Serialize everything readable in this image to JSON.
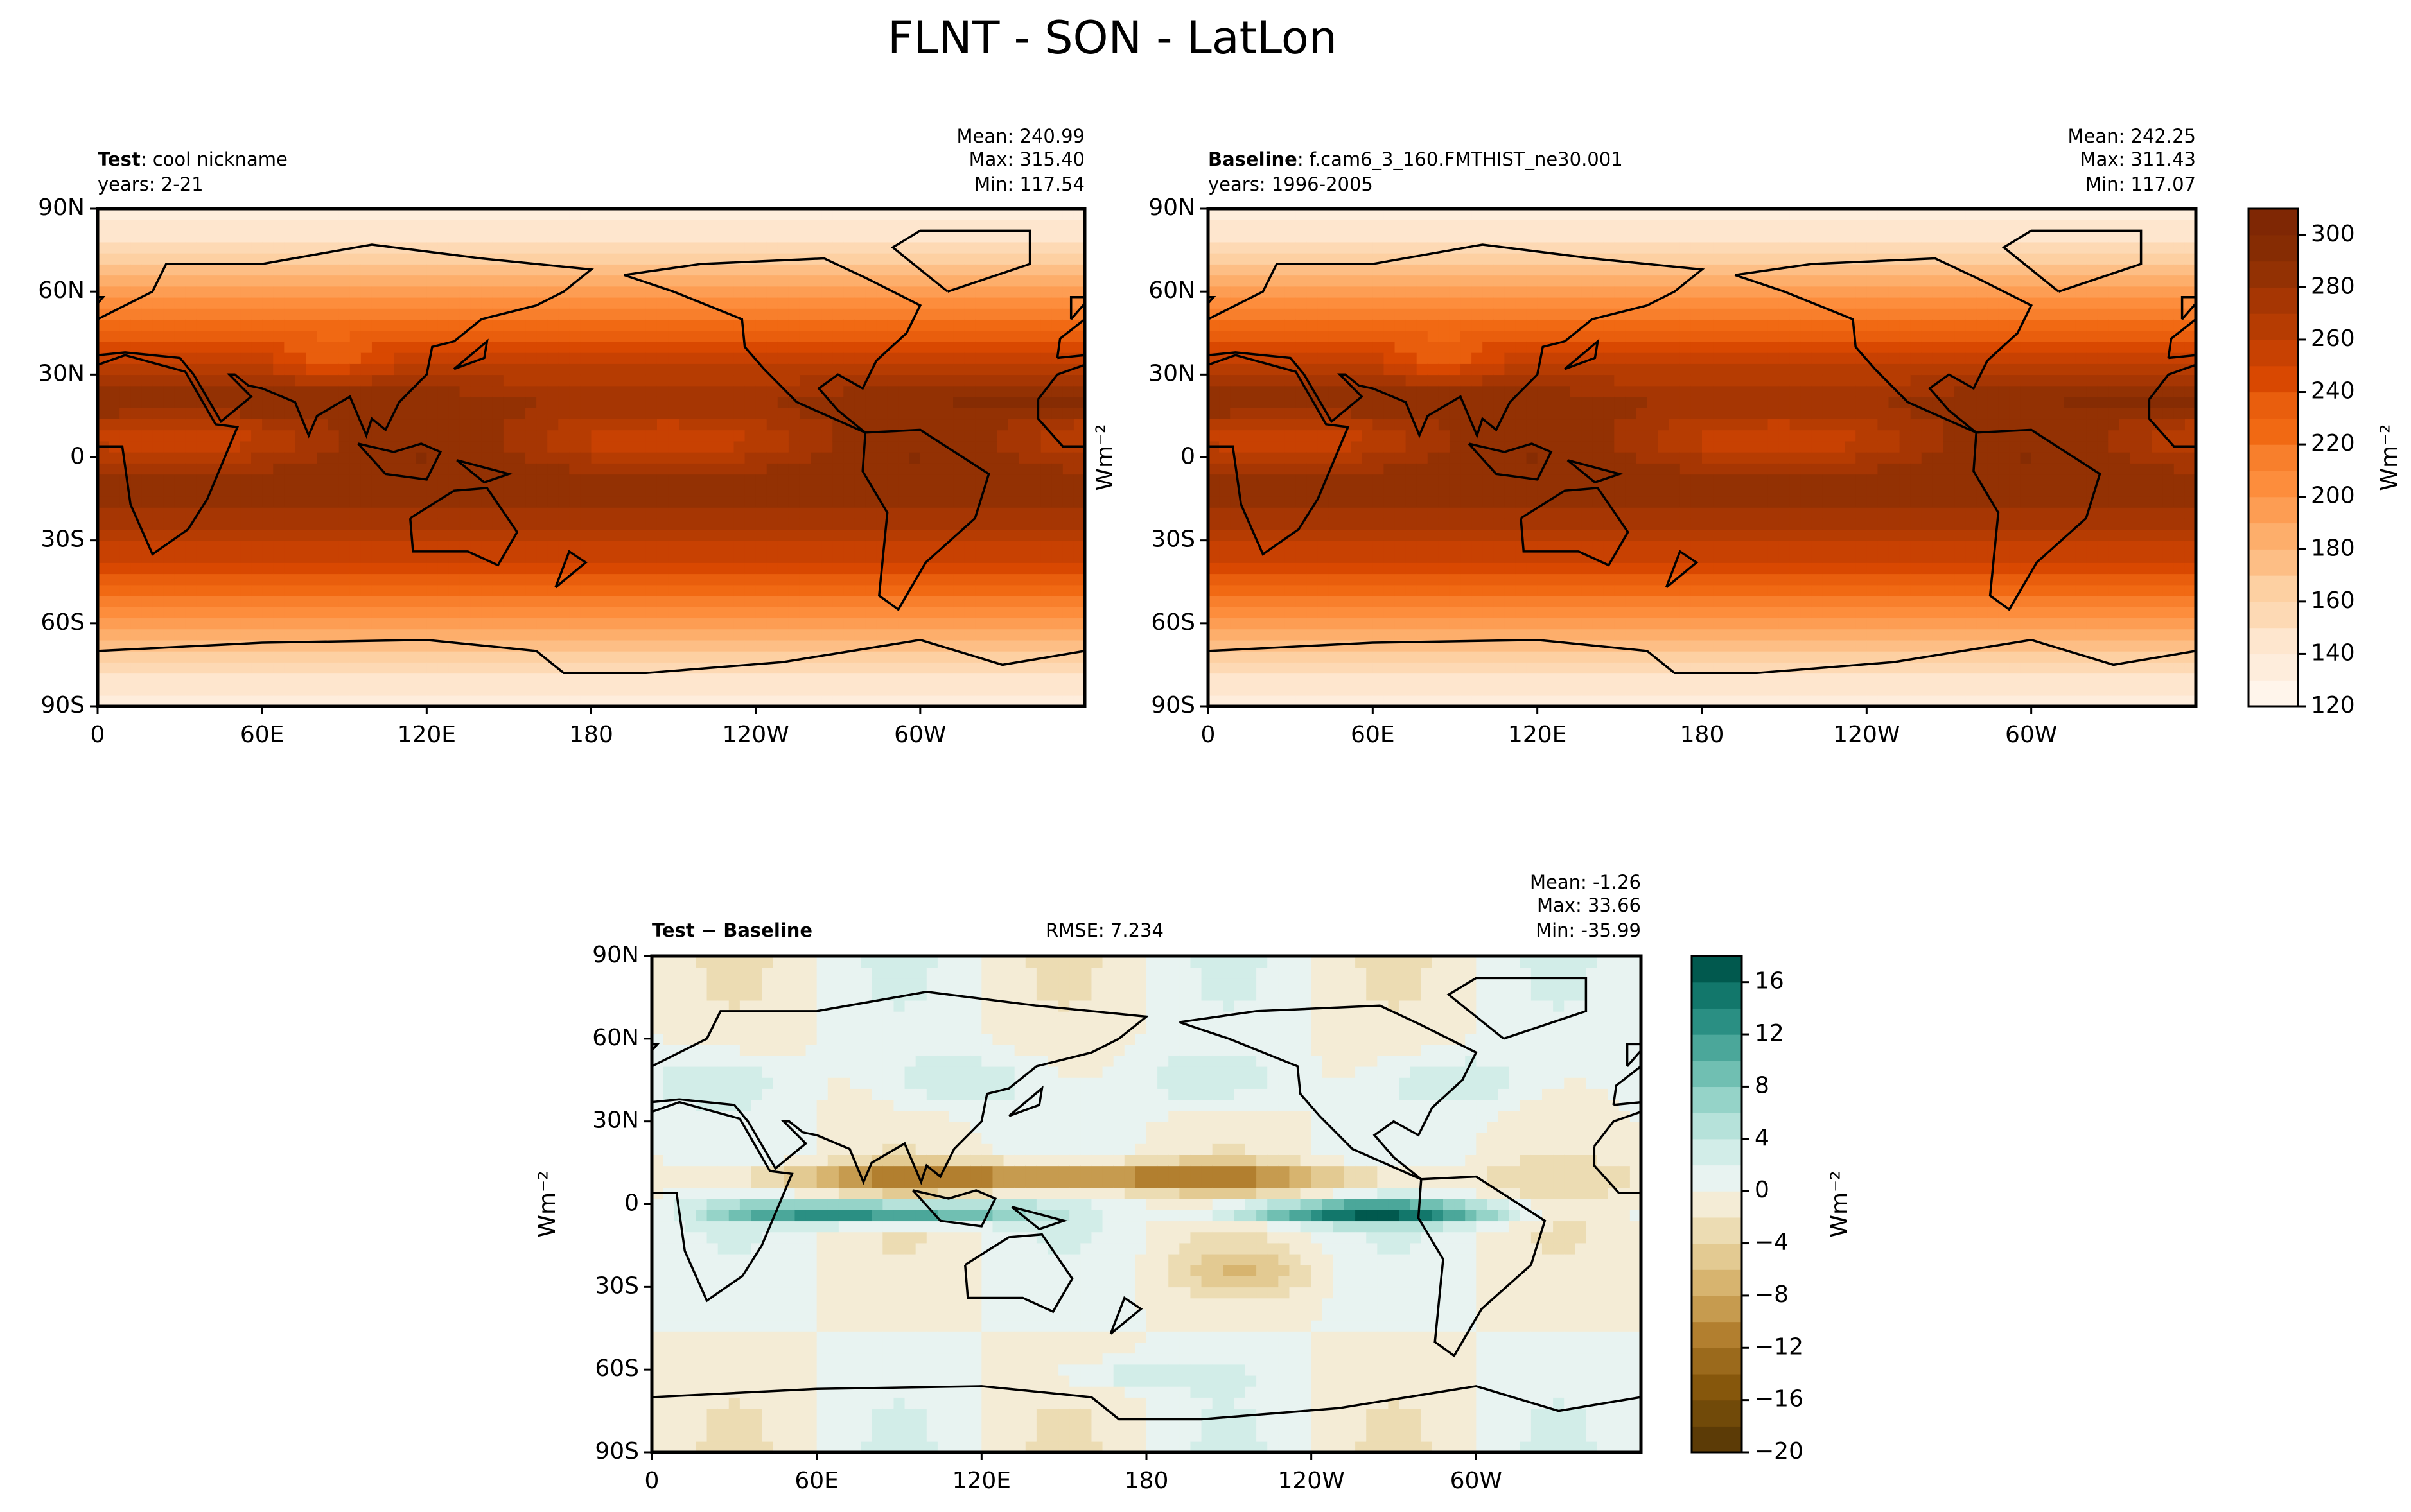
{
  "title": "FLNT - SON - LatLon",
  "chart_data": [
    {
      "type": "map",
      "name_label": "Test",
      "name": ": cool nickname",
      "years": "years: 2-21",
      "stats": [
        "Mean: 240.99",
        "Max: 315.40",
        "Min: 117.54"
      ],
      "xlim": [
        0,
        360
      ],
      "xticks": [
        0,
        {
          "value": 60,
          "label": "60E"
        },
        {
          "value": 120,
          "label": "120E"
        },
        180,
        {
          "value": 240,
          "label": "120W"
        },
        {
          "value": 300,
          "label": "60W"
        }
      ],
      "ylim": [
        -90,
        90
      ],
      "yticks": [
        {
          "value": -90,
          "label": "90S"
        },
        {
          "value": -60,
          "label": "60S"
        },
        {
          "value": -30,
          "label": "30S"
        },
        0,
        {
          "value": 30,
          "label": "30N"
        },
        {
          "value": 60,
          "label": "60N"
        },
        {
          "value": 90,
          "label": "90N"
        }
      ]
    },
    {
      "type": "map",
      "name_label": "Baseline",
      "name": ": f.cam6_3_160.FMTHIST_ne30.001",
      "years": "years: 1996-2005",
      "stats": [
        "Mean: 242.25",
        "Max: 311.43",
        "Min: 117.07"
      ],
      "ylabel": "Wm⁻²",
      "xlim": [
        0,
        360
      ],
      "xticks": [
        0,
        {
          "value": 60,
          "label": "60E"
        },
        {
          "value": 120,
          "label": "120E"
        },
        180,
        {
          "value": 240,
          "label": "120W"
        },
        {
          "value": 300,
          "label": "60W"
        }
      ],
      "ylim": [
        -90,
        90
      ],
      "yticks": [
        {
          "value": -90,
          "label": "90S"
        },
        {
          "value": -60,
          "label": "60S"
        },
        {
          "value": -30,
          "label": "30S"
        },
        0,
        {
          "value": 30,
          "label": "30N"
        },
        {
          "value": 60,
          "label": "60N"
        },
        {
          "value": 90,
          "label": "90N"
        }
      ],
      "colorbar": {
        "label": "Wm⁻²",
        "lim": [
          120,
          310
        ],
        "ticks": [
          120,
          140,
          160,
          180,
          200,
          220,
          240,
          260,
          280,
          300
        ],
        "colors": [
          "#fff5eb",
          "#feeddc",
          "#fee6ce",
          "#fdd9b4",
          "#fdd0a2",
          "#fdbe85",
          "#fdae6b",
          "#fd9d53",
          "#fd8d3c",
          "#f87f2c",
          "#f16913",
          "#e95e0d",
          "#d94801",
          "#c84102",
          "#b63c02",
          "#a63603",
          "#933103",
          "#862c03",
          "#7f2704"
        ]
      }
    },
    {
      "type": "map",
      "name_label": "Test − Baseline",
      "rmse": "RMSE: 7.234",
      "stats": [
        "Mean: -1.26",
        "Max: 33.66",
        "Min: -35.99"
      ],
      "ylabel": "Wm⁻²",
      "xlim": [
        0,
        360
      ],
      "xticks": [
        0,
        {
          "value": 60,
          "label": "60E"
        },
        {
          "value": 120,
          "label": "120E"
        },
        180,
        {
          "value": 240,
          "label": "120W"
        },
        {
          "value": 300,
          "label": "60W"
        }
      ],
      "ylim": [
        -90,
        90
      ],
      "yticks": [
        {
          "value": -90,
          "label": "90S"
        },
        {
          "value": -60,
          "label": "60S"
        },
        {
          "value": -30,
          "label": "30S"
        },
        0,
        {
          "value": 30,
          "label": "30N"
        },
        {
          "value": 60,
          "label": "60N"
        },
        {
          "value": 90,
          "label": "90N"
        }
      ],
      "colorbar": {
        "label": "Wm⁻²",
        "lim": [
          -20,
          18
        ],
        "ticks": [
          {
            "value": -20,
            "label": "−20"
          },
          {
            "value": -16,
            "label": "−16"
          },
          {
            "value": -12,
            "label": "−12"
          },
          {
            "value": -8,
            "label": "−8"
          },
          {
            "value": -4,
            "label": "−4"
          },
          0,
          4,
          8,
          12,
          16
        ],
        "colors": [
          "#5c3b06",
          "#714a09",
          "#86570c",
          "#9b6a1c",
          "#b27f2f",
          "#c69b4f",
          "#d7b46f",
          "#e3ca92",
          "#ecdcb3",
          "#f4ecd6",
          "#e8f3f1",
          "#d2ede8",
          "#b6e2da",
          "#95d3c8",
          "#70bfb2",
          "#4ba79a",
          "#2a8f83",
          "#12776b",
          "#01594e"
        ]
      }
    }
  ]
}
